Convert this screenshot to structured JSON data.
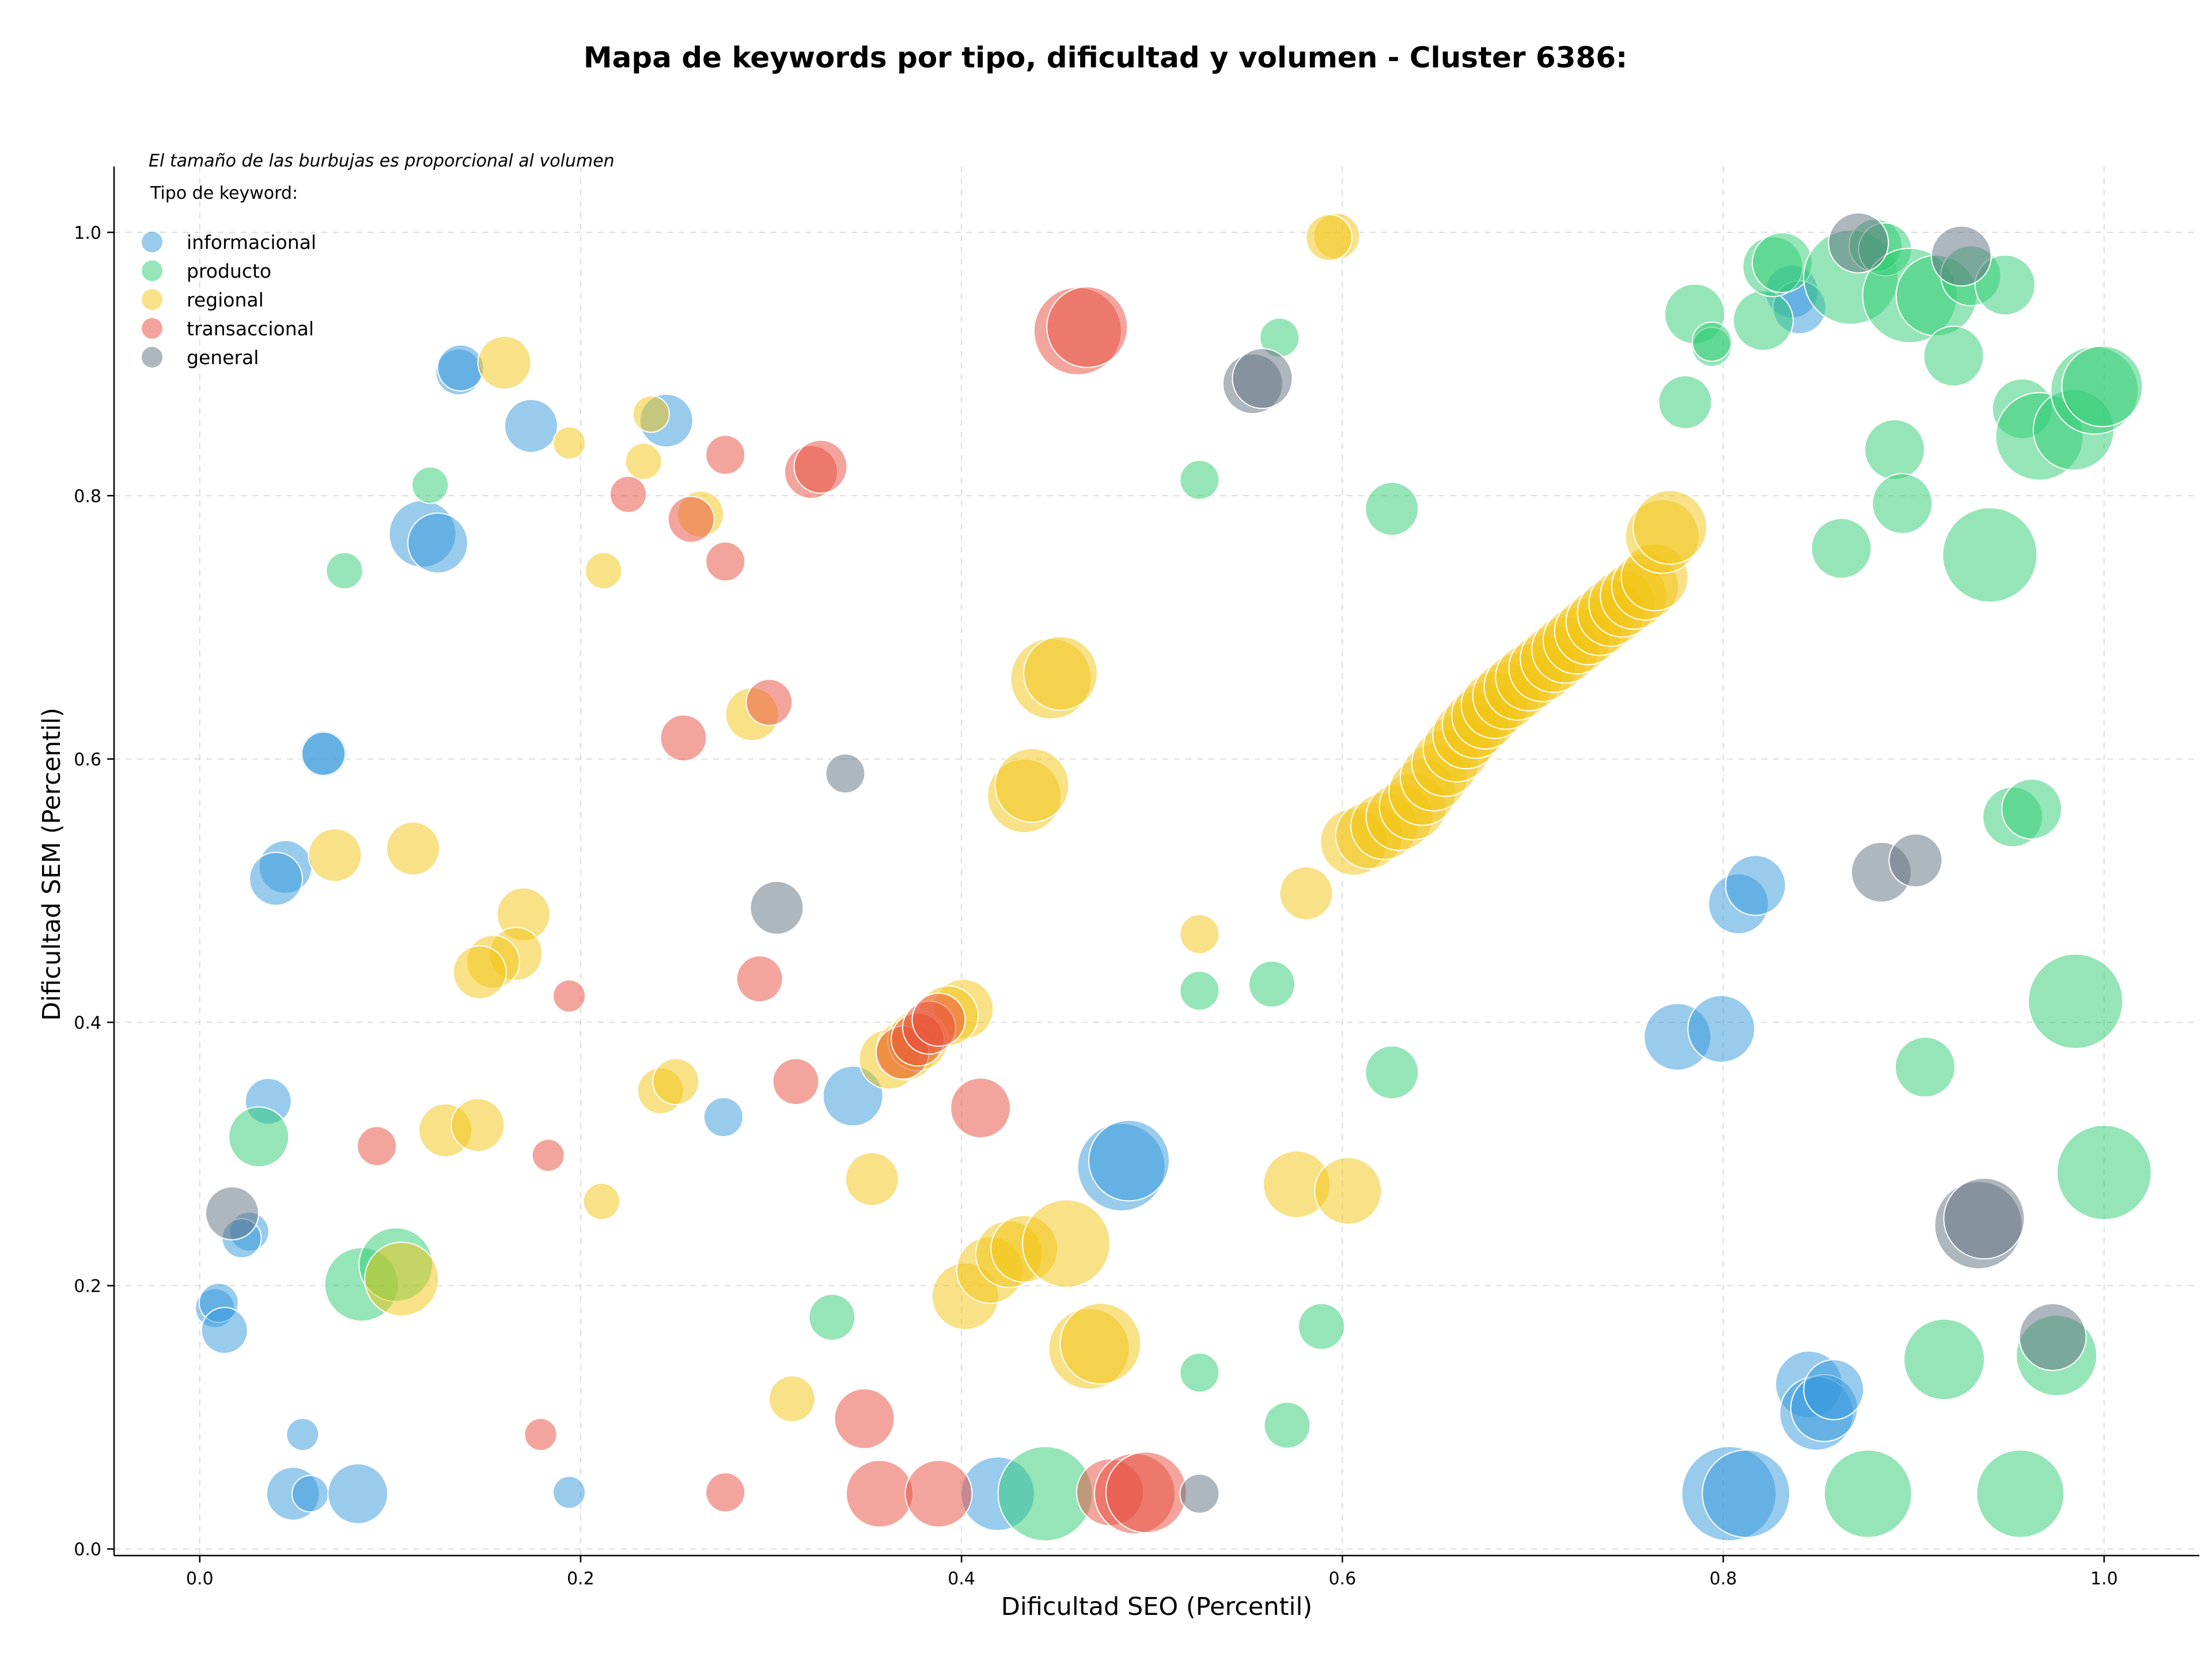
{
  "chart_data": {
    "type": "scatter",
    "title": "Mapa de keywords por tipo, dificultad y volumen - Cluster 6386:",
    "xlabel": "Dificultad SEO (Percentil)",
    "ylabel": "Dificultad SEM (Percentil)",
    "annotation": "El tamaño de las burbujas es proporcional al volumen",
    "legend_title": "Tipo de keyword:",
    "legend_position": "top-left",
    "grid": true,
    "xlim": [
      -0.045,
      1.05
    ],
    "ylim": [
      -0.005,
      1.05
    ],
    "x_ticks": [
      "0.0",
      "0.2",
      "0.4",
      "0.6",
      "0.8",
      "1.0"
    ],
    "x_tick_values": [
      0.0,
      0.2,
      0.4,
      0.6,
      0.8,
      1.0
    ],
    "y_ticks": [
      "0.0",
      "0.2",
      "0.4",
      "0.6",
      "0.8",
      "1.0"
    ],
    "y_tick_values": [
      0.0,
      0.2,
      0.4,
      0.6,
      0.8,
      1.0
    ],
    "point_format": "[x, y, volume_size]",
    "series": [
      {
        "name": "informacional",
        "color": "#3498db",
        "points": [
          [
            0.136,
            0.894,
            1.5
          ],
          [
            0.137,
            0.897,
            1.5
          ],
          [
            0.174,
            0.853,
            2.0
          ],
          [
            0.245,
            0.857,
            2.0
          ],
          [
            0.117,
            0.771,
            3.0
          ],
          [
            0.125,
            0.764,
            2.5
          ],
          [
            0.065,
            0.604,
            1.5
          ],
          [
            0.065,
            0.604,
            1.3
          ],
          [
            0.045,
            0.518,
            2.0
          ],
          [
            0.04,
            0.509,
            2.0
          ],
          [
            0.036,
            0.34,
            1.5
          ],
          [
            0.026,
            0.241,
            1.0
          ],
          [
            0.022,
            0.236,
            1.0
          ],
          [
            0.008,
            0.183,
            1.0
          ],
          [
            0.01,
            0.187,
            1.0
          ],
          [
            0.013,
            0.166,
            1.5
          ],
          [
            0.054,
            0.087,
            0.5
          ],
          [
            0.049,
            0.042,
            2.0
          ],
          [
            0.058,
            0.042,
            0.8
          ],
          [
            0.083,
            0.042,
            2.5
          ],
          [
            0.194,
            0.043,
            0.5
          ],
          [
            0.275,
            0.328,
            1.0
          ],
          [
            0.343,
            0.344,
            2.5
          ],
          [
            0.484,
            0.29,
            4.5
          ],
          [
            0.488,
            0.295,
            4.0
          ],
          [
            0.419,
            0.042,
            3.5
          ],
          [
            0.803,
            0.042,
            5.0
          ],
          [
            0.812,
            0.042,
            4.5
          ],
          [
            0.776,
            0.389,
            3.0
          ],
          [
            0.799,
            0.395,
            3.0
          ],
          [
            0.808,
            0.49,
            2.5
          ],
          [
            0.817,
            0.504,
            2.5
          ],
          [
            0.836,
            0.955,
            2.0
          ],
          [
            0.84,
            0.943,
            2.0
          ],
          [
            0.845,
            0.125,
            3.0
          ],
          [
            0.849,
            0.103,
            3.5
          ],
          [
            0.853,
            0.107,
            3.0
          ],
          [
            0.858,
            0.121,
            2.5
          ]
        ]
      },
      {
        "name": "producto",
        "color": "#2ecc71",
        "points": [
          [
            0.121,
            0.808,
            0.8
          ],
          [
            0.076,
            0.743,
            0.8
          ],
          [
            0.031,
            0.313,
            2.5
          ],
          [
            0.085,
            0.201,
            3.5
          ],
          [
            0.103,
            0.216,
            3.5
          ],
          [
            0.332,
            0.176,
            1.5
          ],
          [
            0.444,
            0.042,
            5.0
          ],
          [
            0.525,
            0.812,
            1.0
          ],
          [
            0.525,
            0.424,
            1.0
          ],
          [
            0.567,
            0.92,
            1.0
          ],
          [
            0.563,
            0.429,
            1.5
          ],
          [
            0.626,
            0.79,
            2.0
          ],
          [
            0.626,
            0.362,
            2.0
          ],
          [
            0.589,
            0.169,
            1.5
          ],
          [
            0.571,
            0.094,
            1.5
          ],
          [
            0.78,
            0.871,
            2.0
          ],
          [
            0.785,
            0.938,
            2.5
          ],
          [
            0.794,
            0.913,
            1.0
          ],
          [
            0.794,
            0.917,
            1.0
          ],
          [
            0.821,
            0.933,
            2.5
          ],
          [
            0.826,
            0.974,
            2.5
          ],
          [
            0.831,
            0.977,
            2.5
          ],
          [
            0.862,
            0.76,
            2.5
          ],
          [
            0.867,
            0.966,
            5.0
          ],
          [
            0.88,
            0.99,
            2.0
          ],
          [
            0.885,
            0.987,
            2.0
          ],
          [
            0.89,
            0.835,
            2.5
          ],
          [
            0.894,
            0.794,
            2.5
          ],
          [
            0.898,
            0.952,
            5.0
          ],
          [
            0.912,
            0.952,
            4.0
          ],
          [
            0.921,
            0.906,
            2.5
          ],
          [
            0.93,
            0.967,
            2.5
          ],
          [
            0.948,
            0.96,
            2.5
          ],
          [
            0.94,
            0.755,
            5.0
          ],
          [
            0.957,
            0.866,
            2.5
          ],
          [
            0.966,
            0.845,
            4.5
          ],
          [
            0.984,
            0.85,
            4.0
          ],
          [
            0.995,
            0.88,
            4.5
          ],
          [
            0.999,
            0.883,
            4.0
          ],
          [
            0.952,
            0.556,
            2.5
          ],
          [
            0.962,
            0.562,
            2.5
          ],
          [
            0.985,
            0.416,
            5.0
          ],
          [
            0.906,
            0.366,
            2.5
          ],
          [
            1.0,
            0.286,
            5.0
          ],
          [
            0.916,
            0.144,
            4.0
          ],
          [
            0.975,
            0.147,
            4.0
          ],
          [
            0.876,
            0.042,
            4.5
          ],
          [
            0.956,
            0.042,
            4.5
          ],
          [
            0.525,
            0.134,
            1.0
          ]
        ]
      },
      {
        "name": "regional",
        "color": "#f1c40f",
        "points": [
          [
            0.16,
            0.901,
            2.0
          ],
          [
            0.194,
            0.84,
            0.5
          ],
          [
            0.212,
            0.743,
            0.8
          ],
          [
            0.233,
            0.826,
            0.8
          ],
          [
            0.237,
            0.862,
            0.8
          ],
          [
            0.263,
            0.786,
            1.5
          ],
          [
            0.29,
            0.634,
            2.0
          ],
          [
            0.071,
            0.527,
            2.0
          ],
          [
            0.112,
            0.532,
            2.0
          ],
          [
            0.17,
            0.482,
            2.0
          ],
          [
            0.166,
            0.452,
            2.0
          ],
          [
            0.154,
            0.446,
            2.0
          ],
          [
            0.147,
            0.438,
            2.0
          ],
          [
            0.242,
            0.348,
            1.5
          ],
          [
            0.25,
            0.355,
            1.5
          ],
          [
            0.129,
            0.318,
            2.0
          ],
          [
            0.146,
            0.322,
            2.0
          ],
          [
            0.211,
            0.264,
            0.8
          ],
          [
            0.106,
            0.205,
            3.5
          ],
          [
            0.311,
            0.114,
            1.5
          ],
          [
            0.353,
            0.281,
            2.0
          ],
          [
            0.597,
            0.997,
            1.5
          ],
          [
            0.593,
            0.996,
            1.5
          ],
          [
            0.447,
            0.661,
            4.0
          ],
          [
            0.452,
            0.665,
            3.5
          ],
          [
            0.433,
            0.572,
            3.5
          ],
          [
            0.437,
            0.58,
            3.5
          ],
          [
            0.581,
            0.498,
            2.0
          ],
          [
            0.525,
            0.467,
            1.0
          ],
          [
            0.401,
            0.41,
            2.5
          ],
          [
            0.393,
            0.405,
            2.5
          ],
          [
            0.362,
            0.372,
            2.5
          ],
          [
            0.371,
            0.379,
            2.5
          ],
          [
            0.377,
            0.386,
            2.5
          ],
          [
            0.402,
            0.192,
            3.0
          ],
          [
            0.415,
            0.212,
            3.0
          ],
          [
            0.425,
            0.224,
            3.0
          ],
          [
            0.433,
            0.228,
            3.0
          ],
          [
            0.455,
            0.232,
            4.5
          ],
          [
            0.467,
            0.152,
            4.0
          ],
          [
            0.473,
            0.156,
            4.0
          ],
          [
            0.576,
            0.277,
            3.0
          ],
          [
            0.603,
            0.272,
            3.0
          ],
          [
            0.606,
            0.537,
            3.0
          ],
          [
            0.614,
            0.542,
            3.0
          ],
          [
            0.622,
            0.549,
            3.0
          ],
          [
            0.63,
            0.556,
            3.0
          ],
          [
            0.637,
            0.564,
            3.0
          ],
          [
            0.642,
            0.575,
            3.0
          ],
          [
            0.648,
            0.586,
            3.0
          ],
          [
            0.654,
            0.597,
            3.0
          ],
          [
            0.66,
            0.608,
            3.0
          ],
          [
            0.665,
            0.618,
            3.0
          ],
          [
            0.67,
            0.626,
            3.0
          ],
          [
            0.675,
            0.633,
            3.0
          ],
          [
            0.68,
            0.641,
            3.0
          ],
          [
            0.686,
            0.648,
            3.0
          ],
          [
            0.692,
            0.655,
            3.0
          ],
          [
            0.698,
            0.662,
            3.0
          ],
          [
            0.705,
            0.669,
            3.0
          ],
          [
            0.711,
            0.676,
            3.0
          ],
          [
            0.717,
            0.683,
            3.0
          ],
          [
            0.723,
            0.69,
            3.0
          ],
          [
            0.729,
            0.697,
            3.0
          ],
          [
            0.735,
            0.704,
            3.0
          ],
          [
            0.741,
            0.711,
            3.0
          ],
          [
            0.747,
            0.718,
            3.0
          ],
          [
            0.753,
            0.724,
            3.0
          ],
          [
            0.759,
            0.731,
            3.0
          ],
          [
            0.764,
            0.738,
            3.0
          ],
          [
            0.768,
            0.769,
            3.5
          ],
          [
            0.772,
            0.776,
            3.5
          ]
        ]
      },
      {
        "name": "transaccional",
        "color": "#e74c3c",
        "points": [
          [
            0.225,
            0.801,
            0.8
          ],
          [
            0.258,
            0.782,
            1.5
          ],
          [
            0.276,
            0.831,
            1.0
          ],
          [
            0.276,
            0.75,
            1.0
          ],
          [
            0.321,
            0.818,
            2.0
          ],
          [
            0.326,
            0.822,
            2.0
          ],
          [
            0.254,
            0.616,
            1.5
          ],
          [
            0.299,
            0.643,
            1.5
          ],
          [
            0.294,
            0.433,
            1.5
          ],
          [
            0.194,
            0.42,
            0.5
          ],
          [
            0.093,
            0.306,
            1.0
          ],
          [
            0.183,
            0.299,
            0.5
          ],
          [
            0.313,
            0.355,
            1.5
          ],
          [
            0.41,
            0.335,
            2.5
          ],
          [
            0.179,
            0.087,
            0.5
          ],
          [
            0.276,
            0.043,
            1.0
          ],
          [
            0.349,
            0.099,
            2.5
          ],
          [
            0.357,
            0.042,
            3.0
          ],
          [
            0.388,
            0.042,
            3.0
          ],
          [
            0.461,
            0.925,
            4.5
          ],
          [
            0.466,
            0.928,
            4.0
          ],
          [
            0.369,
            0.377,
            2.0
          ],
          [
            0.377,
            0.387,
            2.0
          ],
          [
            0.383,
            0.396,
            2.0
          ],
          [
            0.388,
            0.402,
            2.0
          ],
          [
            0.478,
            0.043,
            3.0
          ],
          [
            0.491,
            0.042,
            4.0
          ],
          [
            0.497,
            0.043,
            4.0
          ]
        ]
      },
      {
        "name": "general",
        "color": "#5d6d7e",
        "points": [
          [
            0.339,
            0.589,
            1.0
          ],
          [
            0.303,
            0.487,
            2.0
          ],
          [
            0.017,
            0.255,
            2.0
          ],
          [
            0.553,
            0.885,
            2.5
          ],
          [
            0.558,
            0.889,
            2.5
          ],
          [
            0.525,
            0.042,
            1.0
          ],
          [
            0.871,
            0.992,
            2.5
          ],
          [
            0.925,
            0.982,
            2.5
          ],
          [
            0.883,
            0.514,
            2.5
          ],
          [
            0.901,
            0.523,
            2.0
          ],
          [
            0.934,
            0.246,
            4.5
          ],
          [
            0.937,
            0.251,
            4.0
          ],
          [
            0.973,
            0.161,
            3.0
          ]
        ]
      }
    ]
  }
}
